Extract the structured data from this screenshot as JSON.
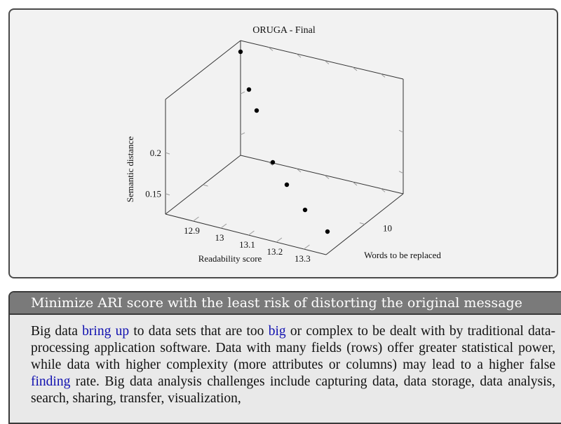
{
  "chart_data": {
    "type": "scatter",
    "title": "ORUGA - Final",
    "xlabel": "Readability score",
    "ylabel": "Words to be replaced",
    "zlabel": "Semantic distance",
    "x_ticks": [
      "12.9",
      "13",
      "13.1",
      "13.2",
      "13.3"
    ],
    "y_ticks": [
      "10"
    ],
    "z_ticks": [
      "0.15",
      "0.2"
    ],
    "points": [
      {
        "x": 13.0,
        "y": 13,
        "z": 0.26
      },
      {
        "x": 13.0,
        "y": 12,
        "z": 0.225
      },
      {
        "x": 13.05,
        "y": 12,
        "z": 0.21
      },
      {
        "x": 13.15,
        "y": 10,
        "z": 0.18
      },
      {
        "x": 13.2,
        "y": 9,
        "z": 0.17
      },
      {
        "x": 13.25,
        "y": 8,
        "z": 0.155
      },
      {
        "x": 13.3,
        "y": 7,
        "z": 0.14
      }
    ]
  },
  "panel": {
    "heading": "Minimize ARI score with the least risk of distorting the original message",
    "paragraph": [
      {
        "text": "Big data ",
        "highlight": false
      },
      {
        "text": "bring up",
        "highlight": true
      },
      {
        "text": " to data sets that are too ",
        "highlight": false
      },
      {
        "text": "big",
        "highlight": true
      },
      {
        "text": " or complex to be dealt with by traditional data-processing application software. Data with many fields (rows) offer greater statistical power, while data with higher complexity (more attributes or columns) may lead to a higher false ",
        "highlight": false
      },
      {
        "text": "finding",
        "highlight": true
      },
      {
        "text": " rate.  Big data analysis challenges include capturing data, data storage, data analysis, search, sharing, transfer, visualization,",
        "highlight": false
      }
    ],
    "highlight_color": "#1010b0"
  }
}
